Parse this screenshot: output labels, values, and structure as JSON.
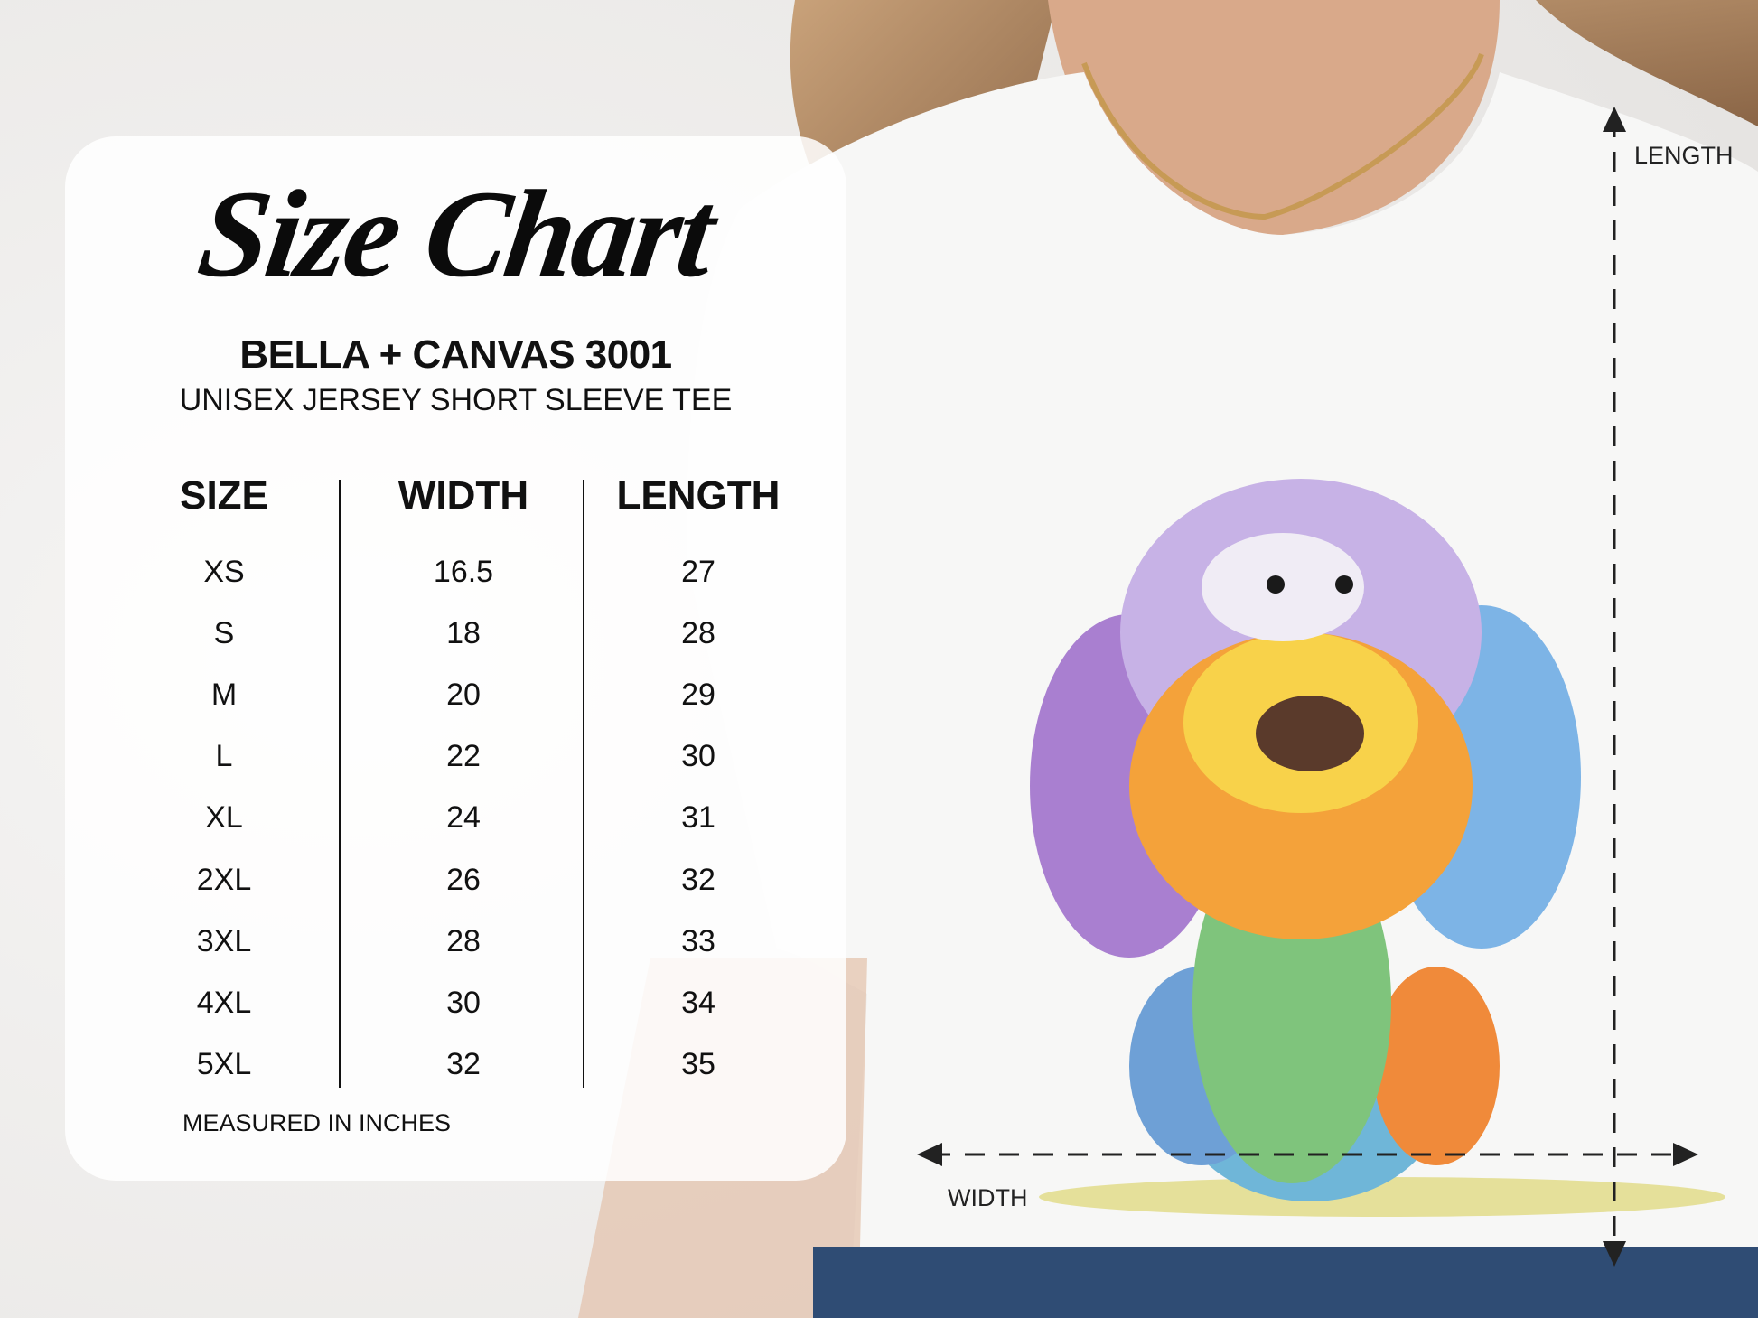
{
  "title": "Size Chart",
  "product": {
    "brand_model": "BELLA + CANVAS 3001",
    "description": "UNISEX JERSEY SHORT SLEEVE TEE"
  },
  "table": {
    "headers": [
      "SIZE",
      "WIDTH",
      "LENGTH"
    ],
    "rows": [
      [
        "XS",
        "16.5",
        "27"
      ],
      [
        "S",
        "18",
        "28"
      ],
      [
        "M",
        "20",
        "29"
      ],
      [
        "L",
        "22",
        "30"
      ],
      [
        "XL",
        "24",
        "31"
      ],
      [
        "2XL",
        "26",
        "32"
      ],
      [
        "3XL",
        "28",
        "33"
      ],
      [
        "4XL",
        "30",
        "34"
      ],
      [
        "5XL",
        "32",
        "35"
      ]
    ]
  },
  "footnote": "MEASURED IN INCHES",
  "measurement_labels": {
    "length": "LENGTH",
    "width": "WIDTH"
  },
  "colors": {
    "text": "#111111",
    "panel": "#ffffff",
    "shirt": "#f7f7f6"
  }
}
